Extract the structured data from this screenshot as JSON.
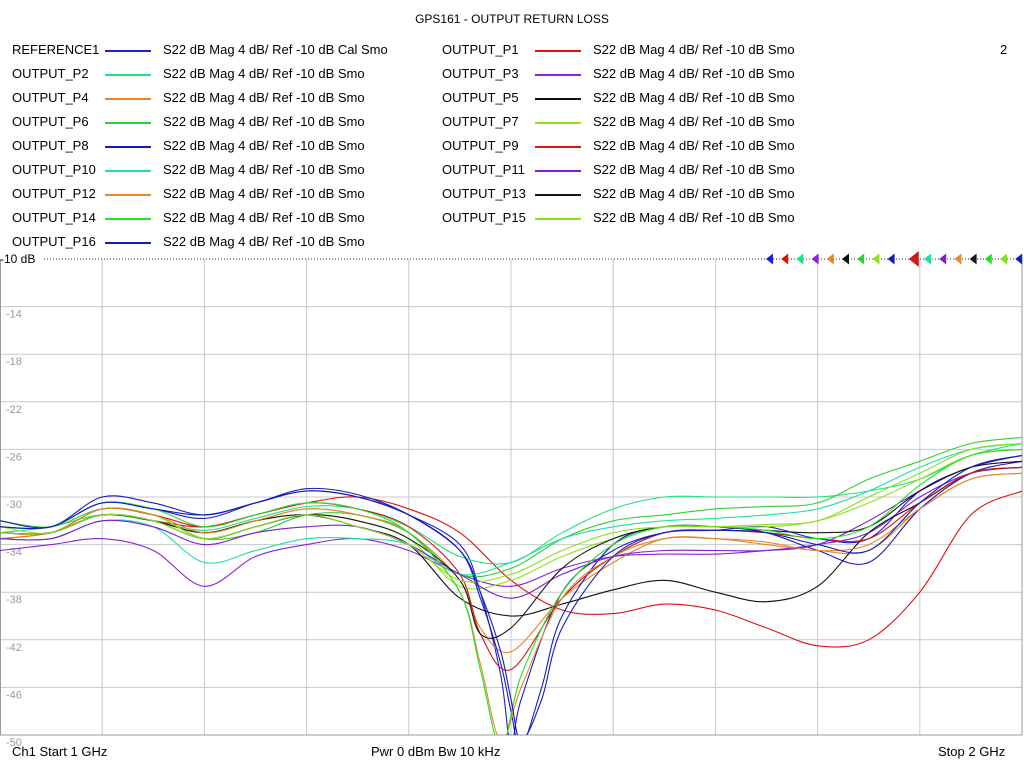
{
  "title": "GPS161 - OUTPUT RETURN LOSS",
  "window_number": "2",
  "ref_label": "-10 dB",
  "footer": {
    "left": "Ch1  Start  1 GHz",
    "center": "Pwr  0 dBm  Bw  10 kHz",
    "right": "Stop  2 GHz"
  },
  "chart_data": {
    "type": "line",
    "title": "GPS161 - OUTPUT RETURN LOSS",
    "xlabel": "",
    "ylabel": "",
    "xlim": [
      1.0,
      2.0
    ],
    "ylim": [
      -50,
      -10
    ],
    "y_ticks": [
      "-10",
      "-14",
      "-18",
      "-22",
      "-26",
      "-30",
      "-34",
      "-38",
      "-42",
      "-46",
      "-50"
    ],
    "grid": true,
    "legend_position": "top",
    "series": [
      {
        "name": "REFERENCE1",
        "format": "S22  dB Mag  4 dB/ Ref -10 dB  Cal Smo",
        "color": "#1f1fd0",
        "x": [
          1.0,
          1.05,
          1.1,
          1.15,
          1.2,
          1.25,
          1.3,
          1.35,
          1.4,
          1.45,
          1.47,
          1.49,
          1.5,
          1.51,
          1.55,
          1.6,
          1.65,
          1.7,
          1.75,
          1.8,
          1.85,
          1.9,
          1.95,
          2.0
        ],
        "y": [
          -32.5,
          -32.5,
          -30.5,
          -31.0,
          -31.8,
          -30.5,
          -29.5,
          -30.0,
          -31.5,
          -34.0,
          -38.0,
          -45.0,
          -51.0,
          -47.0,
          -38.0,
          -34.5,
          -33.0,
          -32.8,
          -32.5,
          -33.5,
          -33.5,
          -29.5,
          -27.5,
          -26.5
        ]
      },
      {
        "name": "OUTPUT_P1",
        "format": "S22  dB Mag  4 dB/ Ref -10 dB  Smo",
        "color": "#e01010",
        "x": [
          1.0,
          1.05,
          1.1,
          1.15,
          1.2,
          1.25,
          1.3,
          1.35,
          1.4,
          1.45,
          1.5,
          1.55,
          1.6,
          1.65,
          1.7,
          1.75,
          1.8,
          1.85,
          1.9,
          1.95,
          2.0
        ],
        "y": [
          -33.5,
          -33.0,
          -31.5,
          -32.0,
          -32.5,
          -31.5,
          -30.5,
          -30.0,
          -31.0,
          -33.0,
          -37.0,
          -39.5,
          -39.8,
          -39.0,
          -39.5,
          -41.0,
          -42.5,
          -42.0,
          -38.0,
          -31.5,
          -29.5
        ]
      },
      {
        "name": "OUTPUT_P2",
        "format": "S22  dB Mag  4 dB/ Ref -10 dB  Smo",
        "color": "#20e080",
        "x": [
          1.0,
          1.05,
          1.1,
          1.15,
          1.2,
          1.25,
          1.3,
          1.35,
          1.4,
          1.45,
          1.5,
          1.55,
          1.6,
          1.65,
          1.7,
          1.75,
          1.8,
          1.85,
          1.9,
          1.95,
          2.0
        ],
        "y": [
          -33.0,
          -32.5,
          -31.5,
          -32.0,
          -32.8,
          -31.8,
          -30.8,
          -31.0,
          -32.5,
          -35.0,
          -35.5,
          -33.0,
          -31.0,
          -30.0,
          -30.0,
          -30.0,
          -30.0,
          -29.5,
          -28.5,
          -26.5,
          -25.5
        ]
      },
      {
        "name": "OUTPUT_P3",
        "format": "S22  dB Mag  4 dB/ Ref -10 dB  Smo",
        "color": "#8a20e0",
        "x": [
          1.0,
          1.05,
          1.1,
          1.15,
          1.2,
          1.25,
          1.3,
          1.35,
          1.4,
          1.45,
          1.5,
          1.55,
          1.6,
          1.65,
          1.7,
          1.75,
          1.8,
          1.85,
          1.9,
          1.95,
          2.0
        ],
        "y": [
          -34.5,
          -34.0,
          -33.5,
          -34.5,
          -37.5,
          -35.0,
          -34.0,
          -33.5,
          -34.5,
          -36.5,
          -37.5,
          -36.0,
          -35.0,
          -34.8,
          -34.8,
          -34.5,
          -34.0,
          -33.0,
          -30.0,
          -28.0,
          -27.5
        ]
      },
      {
        "name": "OUTPUT_P4",
        "format": "S22  dB Mag  4 dB/ Ref -10 dB  Smo",
        "color": "#f08020",
        "x": [
          1.0,
          1.05,
          1.1,
          1.15,
          1.2,
          1.25,
          1.3,
          1.35,
          1.4,
          1.45,
          1.47,
          1.5,
          1.55,
          1.6,
          1.65,
          1.7,
          1.75,
          1.8,
          1.85,
          1.9,
          1.95,
          2.0
        ],
        "y": [
          -33.5,
          -33.0,
          -31.5,
          -32.0,
          -33.0,
          -32.0,
          -31.0,
          -31.5,
          -33.0,
          -37.0,
          -41.0,
          -43.0,
          -38.5,
          -35.5,
          -33.5,
          -33.5,
          -34.0,
          -34.5,
          -34.5,
          -31.0,
          -28.5,
          -28.0
        ]
      },
      {
        "name": "OUTPUT_P5",
        "format": "S22  dB Mag  4 dB/ Ref -10 dB  Smo",
        "color": "#101010",
        "x": [
          1.0,
          1.05,
          1.1,
          1.15,
          1.2,
          1.25,
          1.3,
          1.35,
          1.4,
          1.45,
          1.5,
          1.55,
          1.6,
          1.65,
          1.7,
          1.75,
          1.8,
          1.85,
          1.9,
          1.95,
          2.0
        ],
        "y": [
          -33.0,
          -33.0,
          -31.5,
          -32.0,
          -33.0,
          -32.0,
          -31.5,
          -32.5,
          -34.0,
          -38.5,
          -40.0,
          -39.0,
          -37.8,
          -37.0,
          -38.0,
          -38.8,
          -37.5,
          -33.0,
          -30.5,
          -28.0,
          -27.5
        ]
      },
      {
        "name": "OUTPUT_P6",
        "format": "S22  dB Mag  4 dB/ Ref -10 dB  Smo",
        "color": "#30d030",
        "x": [
          1.0,
          1.05,
          1.1,
          1.15,
          1.2,
          1.25,
          1.3,
          1.35,
          1.4,
          1.45,
          1.5,
          1.55,
          1.6,
          1.65,
          1.7,
          1.75,
          1.8,
          1.85,
          1.9,
          1.95,
          2.0
        ],
        "y": [
          -32.0,
          -32.5,
          -31.0,
          -31.5,
          -33.5,
          -33.0,
          -31.5,
          -31.5,
          -33.0,
          -36.5,
          -36.0,
          -33.5,
          -32.0,
          -31.5,
          -31.0,
          -30.8,
          -30.5,
          -28.5,
          -27.0,
          -25.5,
          -25.0
        ]
      },
      {
        "name": "OUTPUT_P7",
        "format": "S22  dB Mag  4 dB/ Ref -10 dB  Smo",
        "color": "#90e020",
        "x": [
          1.0,
          1.05,
          1.1,
          1.15,
          1.2,
          1.25,
          1.3,
          1.35,
          1.4,
          1.45,
          1.5,
          1.55,
          1.6,
          1.65,
          1.7,
          1.75,
          1.8,
          1.85,
          1.9,
          1.95,
          2.0
        ],
        "y": [
          -32.5,
          -33.0,
          -31.0,
          -31.5,
          -33.5,
          -32.5,
          -31.5,
          -32.0,
          -33.5,
          -37.5,
          -37.0,
          -35.0,
          -33.5,
          -32.5,
          -32.5,
          -32.5,
          -32.0,
          -30.5,
          -28.5,
          -26.5,
          -26.0
        ]
      },
      {
        "name": "OUTPUT_P8",
        "format": "S22  dB Mag  4 dB/ Ref -10 dB  Smo",
        "color": "#1818c0",
        "x": [
          1.0,
          1.05,
          1.1,
          1.15,
          1.2,
          1.25,
          1.3,
          1.35,
          1.4,
          1.45,
          1.47,
          1.49,
          1.5,
          1.51,
          1.53,
          1.55,
          1.6,
          1.65,
          1.7,
          1.75,
          1.8,
          1.85,
          1.9,
          1.95,
          2.0
        ],
        "y": [
          -32.0,
          -32.5,
          -30.0,
          -30.5,
          -31.5,
          -30.5,
          -29.5,
          -30.0,
          -31.5,
          -34.5,
          -38.5,
          -44.0,
          -48.0,
          -51.0,
          -46.0,
          -40.0,
          -34.0,
          -32.5,
          -32.5,
          -33.0,
          -34.5,
          -35.5,
          -31.0,
          -28.0,
          -27.0
        ]
      },
      {
        "name": "OUTPUT_P9",
        "format": "S22  dB Mag  4 dB/ Ref -10 dB  Smo",
        "color": "#d01818",
        "x": [
          1.0,
          1.05,
          1.1,
          1.15,
          1.2,
          1.25,
          1.3,
          1.35,
          1.4,
          1.45,
          1.47,
          1.5,
          1.55,
          1.6,
          1.65,
          1.7,
          1.75,
          1.8,
          1.85,
          1.9,
          1.95,
          2.0
        ],
        "y": [
          -33.0,
          -33.0,
          -31.0,
          -31.5,
          -32.5,
          -31.5,
          -30.5,
          -31.0,
          -32.5,
          -36.5,
          -41.5,
          -44.5,
          -38.5,
          -35.0,
          -33.0,
          -32.8,
          -33.0,
          -33.5,
          -33.5,
          -30.5,
          -28.0,
          -27.5
        ]
      },
      {
        "name": "OUTPUT_P10",
        "format": "S22  dB Mag  4 dB/ Ref -10 dB  Smo",
        "color": "#20e0a0",
        "x": [
          1.0,
          1.05,
          1.1,
          1.15,
          1.2,
          1.25,
          1.3,
          1.35,
          1.4,
          1.45,
          1.5,
          1.55,
          1.6,
          1.65,
          1.7,
          1.75,
          1.8,
          1.85,
          1.9,
          1.95,
          2.0
        ],
        "y": [
          -33.5,
          -33.5,
          -32.0,
          -32.5,
          -35.5,
          -34.5,
          -33.5,
          -33.5,
          -34.0,
          -36.5,
          -35.5,
          -33.5,
          -32.5,
          -32.0,
          -31.8,
          -31.5,
          -31.0,
          -29.5,
          -27.5,
          -26.0,
          -25.5
        ]
      },
      {
        "name": "OUTPUT_P11",
        "format": "S22  dB Mag  4 dB/ Ref -10 dB  Smo",
        "color": "#7a20d0",
        "x": [
          1.0,
          1.05,
          1.1,
          1.15,
          1.2,
          1.25,
          1.3,
          1.35,
          1.4,
          1.45,
          1.5,
          1.55,
          1.6,
          1.65,
          1.7,
          1.75,
          1.8,
          1.85,
          1.9,
          1.95,
          2.0
        ],
        "y": [
          -33.5,
          -33.5,
          -32.0,
          -32.5,
          -34.0,
          -33.0,
          -32.5,
          -32.5,
          -34.0,
          -36.5,
          -38.5,
          -36.5,
          -35.0,
          -34.5,
          -34.5,
          -34.5,
          -34.0,
          -32.0,
          -29.5,
          -27.5,
          -27.0
        ]
      },
      {
        "name": "OUTPUT_P12",
        "format": "S22  dB Mag  4 dB/ Ref -10 dB  Smo",
        "color": "#e08a30",
        "x": [
          1.0,
          1.05,
          1.1,
          1.15,
          1.2,
          1.25,
          1.3,
          1.35,
          1.4,
          1.45,
          1.47,
          1.49,
          1.51,
          1.55,
          1.6,
          1.65,
          1.7,
          1.75,
          1.8,
          1.85,
          1.9,
          1.95,
          2.0
        ],
        "y": [
          -33.0,
          -33.0,
          -31.0,
          -31.5,
          -33.0,
          -32.0,
          -31.0,
          -31.5,
          -33.0,
          -38.0,
          -44.0,
          -50.5,
          -46.0,
          -38.5,
          -35.0,
          -33.5,
          -33.5,
          -33.8,
          -34.5,
          -34.0,
          -31.0,
          -28.5,
          -28.0
        ]
      },
      {
        "name": "OUTPUT_P13",
        "format": "S22  dB Mag  4 dB/ Ref -10 dB  Smo",
        "color": "#181818",
        "x": [
          1.0,
          1.05,
          1.1,
          1.15,
          1.2,
          1.25,
          1.3,
          1.35,
          1.4,
          1.45,
          1.47,
          1.5,
          1.55,
          1.6,
          1.65,
          1.7,
          1.75,
          1.8,
          1.85,
          1.9,
          1.95,
          2.0
        ],
        "y": [
          -33.0,
          -33.0,
          -31.5,
          -32.0,
          -33.5,
          -32.5,
          -31.5,
          -32.0,
          -33.5,
          -37.0,
          -41.5,
          -41.0,
          -36.0,
          -33.5,
          -32.5,
          -32.5,
          -32.8,
          -33.0,
          -32.5,
          -29.5,
          -27.5,
          -27.0
        ]
      },
      {
        "name": "OUTPUT_P14",
        "format": "S22  dB Mag  4 dB/ Ref -10 dB  Smo",
        "color": "#28e028",
        "x": [
          1.0,
          1.05,
          1.1,
          1.15,
          1.2,
          1.25,
          1.3,
          1.35,
          1.4,
          1.45,
          1.47,
          1.49,
          1.51,
          1.55,
          1.6,
          1.65,
          1.7,
          1.75,
          1.8,
          1.85,
          1.9,
          1.95,
          2.0
        ],
        "y": [
          -32.5,
          -32.5,
          -30.5,
          -31.0,
          -32.5,
          -31.5,
          -30.5,
          -31.0,
          -33.0,
          -38.0,
          -44.5,
          -51.0,
          -45.0,
          -38.0,
          -34.0,
          -32.5,
          -32.5,
          -32.8,
          -33.5,
          -32.5,
          -29.0,
          -26.5,
          -26.0
        ]
      },
      {
        "name": "OUTPUT_P15",
        "format": "S22  dB Mag  4 dB/ Ref -10 dB  Smo",
        "color": "#88e020",
        "x": [
          1.0,
          1.05,
          1.1,
          1.15,
          1.2,
          1.25,
          1.3,
          1.35,
          1.4,
          1.45,
          1.5,
          1.55,
          1.6,
          1.65,
          1.7,
          1.75,
          1.8,
          1.85,
          1.9,
          1.95,
          2.0
        ],
        "y": [
          -33.0,
          -33.0,
          -31.5,
          -32.0,
          -33.5,
          -32.5,
          -31.5,
          -32.5,
          -34.0,
          -37.0,
          -36.5,
          -34.5,
          -33.0,
          -32.5,
          -32.5,
          -32.3,
          -32.0,
          -30.0,
          -28.0,
          -26.0,
          -25.5
        ]
      },
      {
        "name": "OUTPUT_P16",
        "format": "S22  dB Mag  4 dB/ Ref -10 dB  Smo",
        "color": "#1020b0",
        "x": [
          1.0,
          1.05,
          1.1,
          1.15,
          1.2,
          1.25,
          1.3,
          1.35,
          1.4,
          1.45,
          1.47,
          1.49,
          1.5,
          1.51,
          1.53,
          1.55,
          1.6,
          1.65,
          1.7,
          1.75,
          1.8,
          1.85,
          1.9,
          1.95,
          2.0
        ],
        "y": [
          -32.5,
          -32.5,
          -30.5,
          -31.0,
          -31.5,
          -30.5,
          -29.3,
          -29.8,
          -31.5,
          -34.5,
          -38.0,
          -43.0,
          -47.0,
          -50.5,
          -47.0,
          -41.0,
          -35.0,
          -33.0,
          -32.8,
          -33.0,
          -34.0,
          -34.5,
          -30.5,
          -27.5,
          -26.5
        ]
      }
    ]
  }
}
